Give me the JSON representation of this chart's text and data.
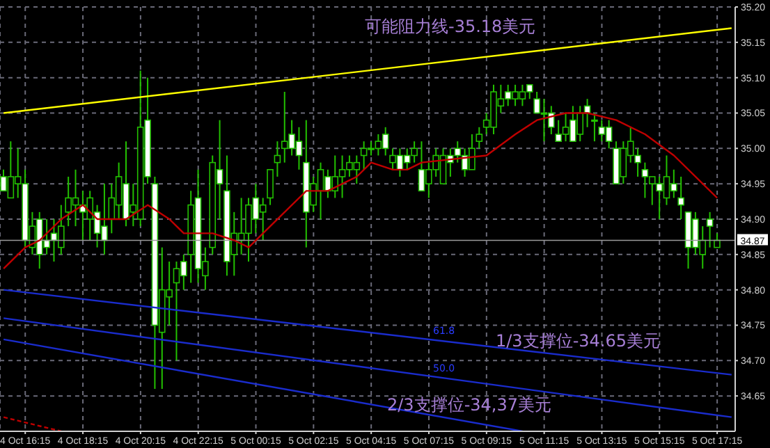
{
  "chart_data": {
    "type": "candlestick",
    "color": "#22c000",
    "categories": [
      null,
      null,
      null,
      "4 Oct 16:15",
      null,
      null,
      null,
      null,
      null,
      null,
      null,
      "4 Oct 18:15",
      null,
      null,
      null,
      null,
      null,
      null,
      null,
      "4 Oct 20:15",
      null,
      null,
      null,
      null,
      null,
      null,
      null,
      "4 Oct 22:15",
      null,
      null,
      null,
      null,
      null,
      null,
      null,
      "5 Oct 00:15",
      null,
      null,
      null,
      null,
      null,
      null,
      null,
      "5 Oct 02:15",
      null,
      null,
      null,
      null,
      null,
      null,
      null,
      "5 Oct 04:15",
      null,
      null,
      null,
      null,
      null,
      null,
      null,
      "5 Oct 07:15",
      null,
      null,
      null,
      null,
      null,
      null,
      null,
      "5 Oct 09:15",
      null,
      null,
      null,
      null,
      null,
      null,
      null,
      "5 Oct 11:15",
      null,
      null,
      null,
      null,
      null,
      null,
      null,
      "5 Oct 13:15",
      null,
      null,
      null,
      null,
      null,
      null,
      null,
      "5 Oct 15:15",
      null,
      null,
      null,
      null,
      null,
      null,
      null,
      "5 Oct 17:15",
      null,
      null
    ],
    "ohlc": [
      [
        34.96,
        34.97,
        34.94,
        34.94
      ],
      [
        34.93,
        35.01,
        34.93,
        34.96
      ],
      [
        34.95,
        35.0,
        34.93,
        34.96
      ],
      [
        34.95,
        34.97,
        34.86,
        34.87
      ],
      [
        34.86,
        34.91,
        34.85,
        34.89
      ],
      [
        34.9,
        34.91,
        34.83,
        34.85
      ],
      [
        34.87,
        34.9,
        34.85,
        34.86
      ],
      [
        34.88,
        34.9,
        34.84,
        34.87
      ],
      [
        34.86,
        34.92,
        34.85,
        34.89
      ],
      [
        34.91,
        34.96,
        34.89,
        34.93
      ],
      [
        34.92,
        34.97,
        34.89,
        34.93
      ],
      [
        34.92,
        34.94,
        34.87,
        34.91
      ],
      [
        34.9,
        34.94,
        34.87,
        34.93
      ],
      [
        34.91,
        34.92,
        34.86,
        34.88
      ],
      [
        34.89,
        34.95,
        34.85,
        34.87
      ],
      [
        34.9,
        34.95,
        34.88,
        34.93
      ],
      [
        34.92,
        34.98,
        34.9,
        34.96
      ],
      [
        34.95,
        35.01,
        34.89,
        34.9
      ],
      [
        34.91,
        34.95,
        34.89,
        34.92
      ],
      [
        34.9,
        35.11,
        34.89,
        35.03
      ],
      [
        35.04,
        35.1,
        34.95,
        34.96
      ],
      [
        34.95,
        34.96,
        34.66,
        34.75
      ],
      [
        34.74,
        34.86,
        34.66,
        34.8
      ],
      [
        34.79,
        34.84,
        34.75,
        34.8
      ],
      [
        34.81,
        34.84,
        34.7,
        34.83
      ],
      [
        34.84,
        34.85,
        34.8,
        34.82
      ],
      [
        34.85,
        34.94,
        34.81,
        34.92
      ],
      [
        34.93,
        34.97,
        34.81,
        34.83
      ],
      [
        34.82,
        34.86,
        34.8,
        34.84
      ],
      [
        34.86,
        34.99,
        34.85,
        34.98
      ],
      [
        34.97,
        35.04,
        34.9,
        34.95
      ],
      [
        34.94,
        34.99,
        34.82,
        34.84
      ],
      [
        34.85,
        34.91,
        34.82,
        34.88
      ],
      [
        34.87,
        34.93,
        34.85,
        34.88
      ],
      [
        34.88,
        34.93,
        34.84,
        34.92
      ],
      [
        34.93,
        34.95,
        34.88,
        34.9
      ],
      [
        34.91,
        34.93,
        34.87,
        34.92
      ],
      [
        34.93,
        34.97,
        34.92,
        34.97
      ],
      [
        34.98,
        35.01,
        34.96,
        34.99
      ],
      [
        35.0,
        35.08,
        34.98,
        35.01
      ],
      [
        35.02,
        35.04,
        34.99,
        35.0
      ],
      [
        35.01,
        35.03,
        34.97,
        34.99
      ],
      [
        34.98,
        35.04,
        34.86,
        34.91
      ],
      [
        34.92,
        34.96,
        34.91,
        34.95
      ],
      [
        34.94,
        34.98,
        34.9,
        34.97
      ],
      [
        34.96,
        34.97,
        34.93,
        34.94
      ],
      [
        34.94,
        34.99,
        34.93,
        34.96
      ],
      [
        34.96,
        34.99,
        34.93,
        34.97
      ],
      [
        34.97,
        34.99,
        34.96,
        34.98
      ],
      [
        34.97,
        34.99,
        34.95,
        34.98
      ],
      [
        34.99,
        35.01,
        34.97,
        35.0
      ],
      [
        35.0,
        35.01,
        34.99,
        35.0
      ],
      [
        35.0,
        35.02,
        34.99,
        35.01
      ],
      [
        35.02,
        35.03,
        34.99,
        35.0
      ],
      [
        34.98,
        35.0,
        34.97,
        34.99
      ],
      [
        34.99,
        35.0,
        34.96,
        34.97
      ],
      [
        34.99,
        35.0,
        34.97,
        34.98
      ],
      [
        34.99,
        35.01,
        34.98,
        35.0
      ],
      [
        34.97,
        35.01,
        34.94,
        34.94
      ],
      [
        34.95,
        34.98,
        34.93,
        34.97
      ],
      [
        34.97,
        35.0,
        34.96,
        34.99
      ],
      [
        34.95,
        35.0,
        34.95,
        34.99
      ],
      [
        34.99,
        35.0,
        34.96,
        34.98
      ],
      [
        35.0,
        35.01,
        34.98,
        34.99
      ],
      [
        34.99,
        35.0,
        34.96,
        34.97
      ],
      [
        34.97,
        35.02,
        34.97,
        35.0
      ],
      [
        35.01,
        35.03,
        35.0,
        35.02
      ],
      [
        35.03,
        35.05,
        35.02,
        35.04
      ],
      [
        35.03,
        35.09,
        35.02,
        35.08
      ],
      [
        35.06,
        35.09,
        35.05,
        35.07
      ],
      [
        35.08,
        35.09,
        35.06,
        35.07
      ],
      [
        35.07,
        35.09,
        35.06,
        35.08
      ],
      [
        35.07,
        35.09,
        35.06,
        35.08
      ],
      [
        35.09,
        35.09,
        35.07,
        35.08
      ],
      [
        35.07,
        35.08,
        35.05,
        35.05
      ],
      [
        35.05,
        35.07,
        35.01,
        35.05
      ],
      [
        35.05,
        35.06,
        35.02,
        35.03
      ],
      [
        35.02,
        35.04,
        35.01,
        35.01
      ],
      [
        35.02,
        35.05,
        35.01,
        35.03
      ],
      [
        35.04,
        35.06,
        35.01,
        35.01
      ],
      [
        35.02,
        35.06,
        35.01,
        35.05
      ],
      [
        35.06,
        35.07,
        35.03,
        35.05
      ],
      [
        35.04,
        35.05,
        35.01,
        35.04
      ],
      [
        35.03,
        35.04,
        35.01,
        35.02
      ],
      [
        35.03,
        35.04,
        35.0,
        35.01
      ],
      [
        35.0,
        35.01,
        34.95,
        34.95
      ],
      [
        34.96,
        35.01,
        34.95,
        35.0
      ],
      [
        34.99,
        35.03,
        34.98,
        35.01
      ],
      [
        34.99,
        35.0,
        34.96,
        34.98
      ],
      [
        34.97,
        34.98,
        34.93,
        34.96
      ],
      [
        34.95,
        34.96,
        34.92,
        34.96
      ],
      [
        34.95,
        34.96,
        34.9,
        34.94
      ],
      [
        34.93,
        34.99,
        34.92,
        34.96
      ],
      [
        34.95,
        34.97,
        34.93,
        34.94
      ],
      [
        34.93,
        34.96,
        34.9,
        34.92
      ],
      [
        34.91,
        34.91,
        34.83,
        34.86
      ],
      [
        34.9,
        34.91,
        34.85,
        34.86
      ],
      [
        34.85,
        34.89,
        34.83,
        34.87
      ],
      [
        34.9,
        34.91,
        34.86,
        34.89
      ],
      [
        34.86,
        34.88,
        34.86,
        34.87
      ],
      null,
      null
    ],
    "series": [
      {
        "type": "line",
        "color": "#c00000",
        "values": [
          34.83,
          null,
          null,
          34.86,
          null,
          34.87,
          null,
          null,
          34.9,
          null,
          null,
          34.92,
          null,
          34.9,
          null,
          null,
          null,
          34.9,
          null,
          null,
          34.92,
          null,
          null,
          34.9,
          null,
          34.88,
          null,
          null,
          null,
          34.88,
          null,
          null,
          34.87,
          null,
          34.86,
          null,
          null,
          34.89,
          null,
          null,
          34.92,
          null,
          34.94,
          null,
          null,
          34.94,
          null,
          null,
          null,
          34.96,
          null,
          34.98,
          null,
          null,
          34.97,
          null,
          34.97,
          null,
          34.98,
          null,
          null,
          null,
          null,
          null,
          null,
          null,
          null,
          34.99,
          null,
          null,
          null,
          35.02,
          null,
          null,
          35.04,
          null,
          null,
          null,
          35.05,
          null,
          null,
          35.05,
          null,
          null,
          null,
          35.04,
          null,
          null,
          null,
          35.02,
          null,
          null,
          null,
          34.99,
          null,
          null,
          null,
          34.95,
          null,
          34.93,
          null,
          null
        ]
      },
      {
        "type": "line",
        "color": "#ffff00",
        "values": [
          35.05,
          null,
          null,
          null,
          null,
          null,
          null,
          null,
          null,
          null,
          null,
          null,
          null,
          null,
          null,
          null,
          null,
          null,
          null,
          null,
          null,
          null,
          null,
          null,
          null,
          null,
          null,
          null,
          null,
          null,
          null,
          null,
          null,
          null,
          null,
          null,
          null,
          null,
          null,
          null,
          null,
          null,
          null,
          null,
          null,
          null,
          null,
          null,
          null,
          null,
          null,
          null,
          null,
          null,
          null,
          null,
          null,
          null,
          null,
          null,
          null,
          null,
          null,
          null,
          null,
          null,
          null,
          null,
          null,
          null,
          null,
          null,
          null,
          null,
          null,
          null,
          null,
          null,
          null,
          null,
          null,
          null,
          null,
          null,
          null,
          null,
          null,
          null,
          null,
          null,
          null,
          null,
          null,
          null,
          null,
          null,
          null,
          null,
          null,
          null,
          null,
          35.17
        ]
      },
      {
        "type": "line",
        "color": "#1a2ccc",
        "values": [
          34.8,
          null,
          null,
          null,
          null,
          null,
          null,
          null,
          null,
          null,
          null,
          null,
          null,
          null,
          null,
          null,
          null,
          null,
          null,
          null,
          null,
          null,
          null,
          null,
          null,
          null,
          null,
          null,
          null,
          null,
          null,
          null,
          null,
          null,
          null,
          null,
          null,
          null,
          null,
          null,
          null,
          null,
          null,
          null,
          null,
          null,
          null,
          null,
          null,
          null,
          null,
          null,
          null,
          null,
          null,
          null,
          null,
          null,
          null,
          null,
          null,
          null,
          null,
          null,
          null,
          null,
          null,
          null,
          null,
          null,
          null,
          null,
          null,
          null,
          null,
          null,
          null,
          null,
          null,
          null,
          null,
          null,
          null,
          null,
          null,
          null,
          null,
          null,
          null,
          null,
          null,
          null,
          null,
          null,
          null,
          null,
          null,
          null,
          null,
          null,
          null,
          34.68
        ]
      },
      {
        "type": "line",
        "color": "#1a2ccc",
        "values": [
          34.76,
          null,
          null,
          null,
          null,
          null,
          null,
          null,
          null,
          null,
          null,
          null,
          null,
          null,
          null,
          null,
          null,
          null,
          null,
          null,
          null,
          null,
          null,
          null,
          null,
          null,
          null,
          null,
          null,
          null,
          null,
          null,
          null,
          null,
          null,
          null,
          null,
          null,
          null,
          null,
          null,
          null,
          null,
          null,
          null,
          null,
          null,
          null,
          null,
          null,
          null,
          null,
          null,
          null,
          null,
          null,
          null,
          null,
          null,
          null,
          null,
          null,
          null,
          null,
          null,
          null,
          null,
          null,
          null,
          null,
          null,
          null,
          null,
          null,
          null,
          null,
          null,
          null,
          null,
          null,
          null,
          null,
          null,
          null,
          null,
          null,
          null,
          null,
          null,
          null,
          null,
          null,
          null,
          null,
          null,
          null,
          null,
          null,
          null,
          null,
          null,
          34.62
        ]
      },
      {
        "type": "line",
        "color": "#1a2ccc",
        "values": [
          34.73,
          null,
          null,
          null,
          null,
          null,
          null,
          null,
          null,
          null,
          null,
          null,
          null,
          null,
          null,
          null,
          null,
          null,
          null,
          null,
          null,
          null,
          null,
          null,
          null,
          null,
          null,
          null,
          null,
          null,
          null,
          null,
          null,
          null,
          null,
          null,
          null,
          null,
          null,
          null,
          null,
          null,
          null,
          null,
          null,
          null,
          null,
          null,
          null,
          null,
          null,
          null,
          null,
          null,
          null,
          null,
          null,
          null,
          null,
          null,
          null,
          null,
          null,
          null,
          null,
          null,
          null,
          null,
          null,
          null,
          null,
          null,
          34.6,
          null,
          null,
          null,
          null,
          null,
          null,
          null,
          null,
          null,
          null,
          null,
          null,
          null,
          null,
          null,
          null,
          null,
          null,
          null,
          null,
          null,
          null,
          null,
          null,
          null,
          null,
          null,
          null,
          null
        ]
      },
      {
        "type": "line",
        "color": "#c00000",
        "line_style": "dashed",
        "values": [
          34.62,
          null,
          null,
          null,
          null,
          null,
          null,
          null,
          34.6,
          null,
          null,
          null,
          null,
          null,
          null,
          null,
          null,
          null,
          null,
          null,
          null,
          null,
          null,
          null,
          null,
          null,
          null,
          null,
          null,
          null,
          null,
          null,
          null,
          null,
          null,
          null,
          null,
          null,
          null,
          null,
          null,
          null,
          null,
          null,
          null,
          null,
          null,
          null,
          null,
          null,
          null,
          null,
          null,
          null,
          null,
          null,
          null,
          null,
          null,
          null,
          null,
          null,
          null,
          null,
          null,
          null,
          null,
          null,
          null,
          null,
          null,
          null,
          null,
          null,
          null,
          null,
          null,
          null,
          null,
          null,
          null,
          null,
          null,
          null,
          null,
          null,
          null,
          null,
          null,
          null,
          null,
          null,
          null,
          null,
          null,
          null,
          null,
          null,
          null,
          null,
          null,
          null
        ]
      }
    ],
    "ylim": [
      34.6,
      35.2
    ],
    "yticks": [
      34.65,
      {
        "value": 34.7,
        "label": "34.70"
      },
      34.75,
      {
        "value": 34.8,
        "label": "34.80"
      },
      34.85,
      {
        "value": 34.9,
        "label": "34.90"
      },
      34.95,
      {
        "value": 35.0,
        "label": "35.00"
      },
      35.05,
      {
        "value": 35.1,
        "label": "35.10"
      },
      35.15,
      {
        "value": 35.2,
        "label": "35.20"
      }
    ],
    "grid": true,
    "ref_lines": [
      {
        "axis": "y",
        "value": 34.87,
        "label": "34.87",
        "color": "#9a9a9a"
      }
    ],
    "annotations": [
      "可能阻力线-35.18美元",
      "1/3支撑位-34.65美元",
      "2/3支撑位-34,37美元",
      "61.8",
      "50.0"
    ]
  }
}
